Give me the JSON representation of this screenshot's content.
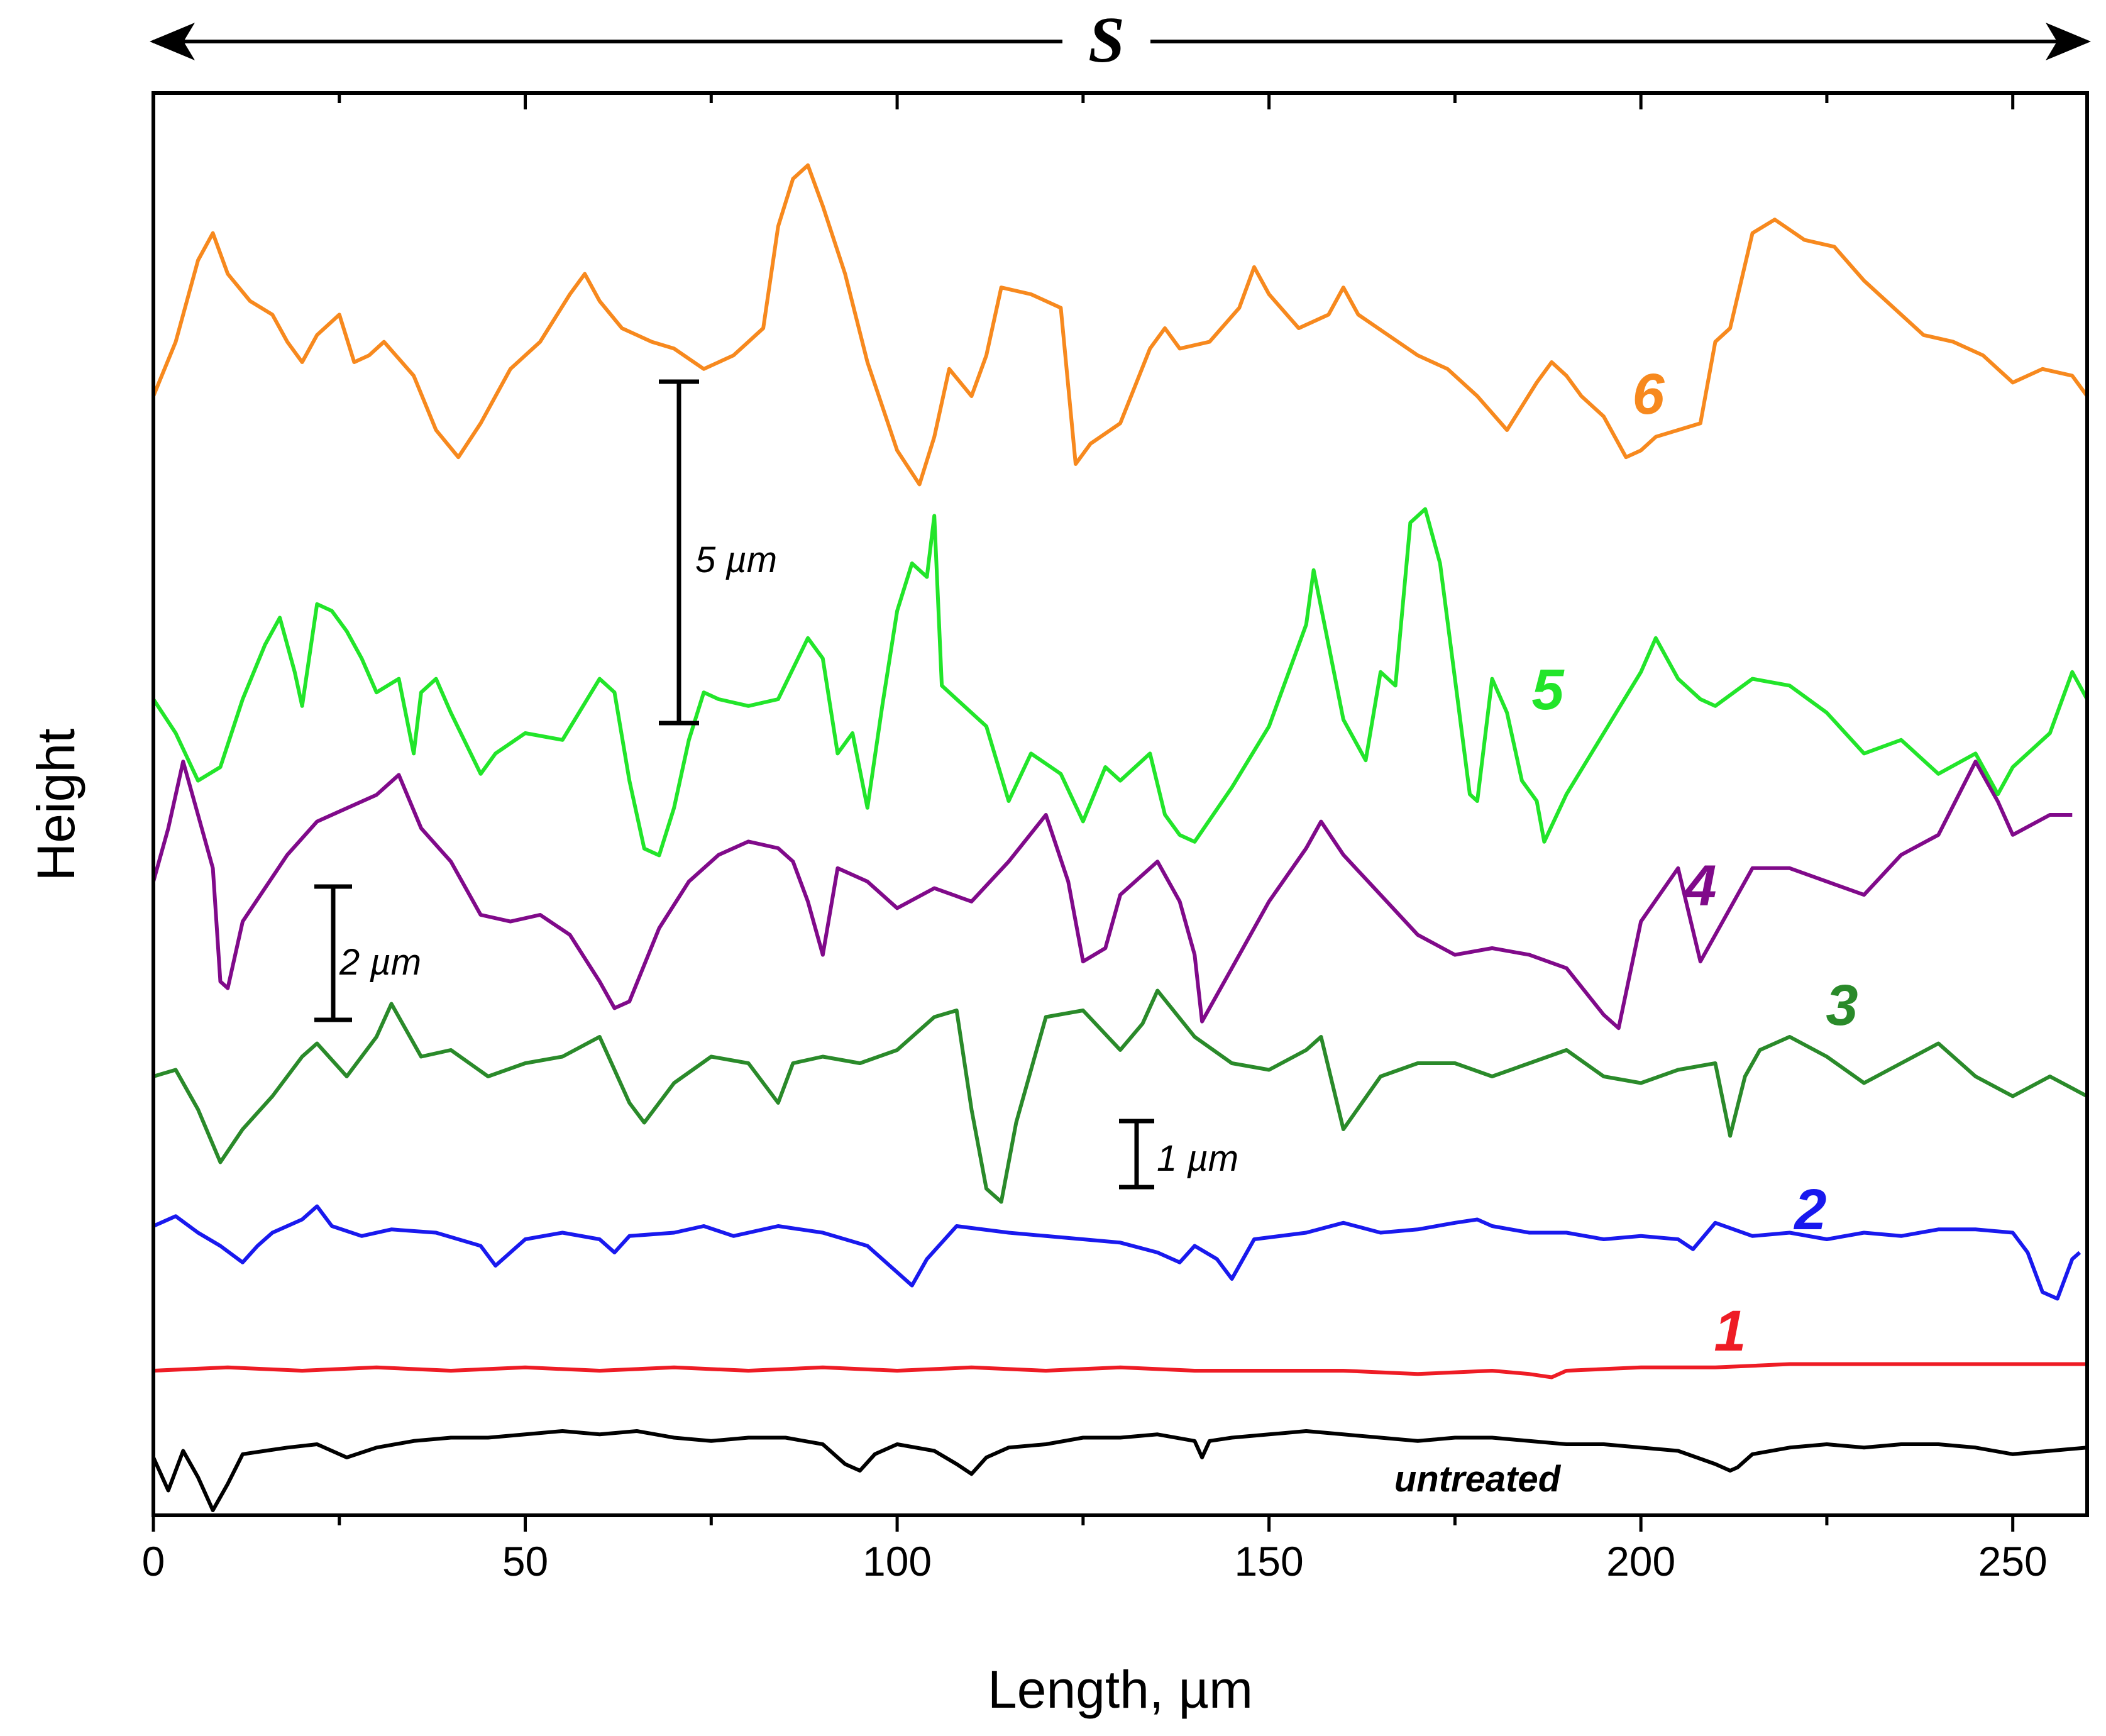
{
  "chart_data": {
    "type": "line",
    "title": "",
    "xlabel": "Length, µm",
    "ylabel": "Height",
    "xlim": [
      0,
      260
    ],
    "xticks": [
      0,
      50,
      100,
      150,
      200,
      250
    ],
    "xtick_labels": [
      "0",
      "50",
      "100",
      "150",
      "200",
      "250"
    ],
    "top_arrow_label": "S",
    "scale_bars": [
      {
        "label": "5 µm",
        "value_um": 5
      },
      {
        "label": "2 µm",
        "value_um": 2
      },
      {
        "label": "1 µm",
        "value_um": 1
      }
    ],
    "series": [
      {
        "name": "untreated",
        "label": "untreated",
        "color": "#000000",
        "x": [
          0,
          2,
          4,
          6,
          8,
          10,
          12,
          15,
          18,
          22,
          26,
          30,
          35,
          40,
          45,
          50,
          55,
          60,
          65,
          70,
          75,
          80,
          85,
          90,
          93,
          95,
          97,
          100,
          105,
          108,
          110,
          112,
          115,
          120,
          125,
          130,
          135,
          140,
          141,
          142,
          145,
          150,
          155,
          160,
          165,
          170,
          175,
          180,
          185,
          190,
          195,
          200,
          205,
          210,
          212,
          213,
          215,
          220,
          225,
          230,
          235,
          240,
          245,
          250,
          255,
          260
        ],
        "y": [
          0.0,
          -0.5,
          0.1,
          -0.3,
          -0.8,
          -0.4,
          0.05,
          0.1,
          0.15,
          0.2,
          0.0,
          0.15,
          0.25,
          0.3,
          0.3,
          0.35,
          0.4,
          0.35,
          0.4,
          0.3,
          0.25,
          0.3,
          0.3,
          0.2,
          -0.1,
          -0.2,
          0.05,
          0.2,
          0.1,
          -0.1,
          -0.25,
          0.0,
          0.15,
          0.2,
          0.3,
          0.3,
          0.35,
          0.25,
          0.0,
          0.25,
          0.3,
          0.35,
          0.4,
          0.35,
          0.3,
          0.25,
          0.3,
          0.3,
          0.25,
          0.2,
          0.2,
          0.15,
          0.1,
          -0.1,
          -0.2,
          -0.15,
          0.05,
          0.15,
          0.2,
          0.15,
          0.2,
          0.2,
          0.15,
          0.05,
          0.1,
          0.15
        ]
      },
      {
        "name": "1",
        "label": "1",
        "color": "#ee1c25",
        "x": [
          0,
          10,
          20,
          30,
          40,
          50,
          60,
          70,
          80,
          90,
          100,
          110,
          120,
          130,
          140,
          150,
          160,
          170,
          180,
          185,
          188,
          190,
          200,
          210,
          220,
          230,
          240,
          250,
          260
        ],
        "y": [
          0.0,
          0.05,
          0.0,
          0.05,
          0.0,
          0.05,
          0.0,
          0.05,
          0.0,
          0.05,
          0.0,
          0.05,
          0.0,
          0.05,
          0.0,
          0.0,
          0.0,
          -0.05,
          0.0,
          -0.05,
          -0.1,
          0.0,
          0.05,
          0.05,
          0.1,
          0.1,
          0.1,
          0.1,
          0.1
        ]
      },
      {
        "name": "2",
        "label": "2",
        "color": "#1919ee",
        "x": [
          0,
          3,
          6,
          9,
          12,
          14,
          16,
          20,
          22,
          24,
          28,
          32,
          38,
          44,
          46,
          50,
          55,
          60,
          62,
          64,
          70,
          74,
          78,
          84,
          90,
          96,
          100,
          102,
          104,
          108,
          115,
          120,
          125,
          130,
          135,
          138,
          140,
          143,
          145,
          148,
          155,
          160,
          165,
          170,
          175,
          178,
          180,
          185,
          190,
          195,
          200,
          205,
          207,
          210,
          215,
          220,
          225,
          230,
          235,
          240,
          245,
          250,
          252,
          254,
          256,
          258,
          259
        ],
        "y": [
          0.0,
          0.15,
          -0.1,
          -0.3,
          -0.55,
          -0.3,
          -0.1,
          0.1,
          0.3,
          0.0,
          -0.15,
          -0.05,
          -0.1,
          -0.3,
          -0.6,
          -0.2,
          -0.1,
          -0.2,
          -0.4,
          -0.15,
          -0.1,
          0.0,
          -0.15,
          0.0,
          -0.1,
          -0.3,
          -0.7,
          -0.9,
          -0.5,
          0.0,
          -0.1,
          -0.15,
          -0.2,
          -0.25,
          -0.4,
          -0.55,
          -0.3,
          -0.5,
          -0.8,
          -0.2,
          -0.1,
          0.05,
          -0.1,
          -0.05,
          0.05,
          0.1,
          0.0,
          -0.1,
          -0.1,
          -0.2,
          -0.15,
          -0.2,
          -0.35,
          0.05,
          -0.15,
          -0.1,
          -0.2,
          -0.1,
          -0.15,
          -0.05,
          -0.05,
          -0.1,
          -0.4,
          -1.0,
          -1.1,
          -0.5,
          -0.4
        ]
      },
      {
        "name": "3",
        "label": "3",
        "color": "#2a8a2a",
        "x": [
          0,
          3,
          6,
          9,
          12,
          16,
          20,
          22,
          26,
          30,
          32,
          36,
          40,
          45,
          50,
          55,
          60,
          64,
          66,
          70,
          75,
          80,
          84,
          86,
          90,
          95,
          100,
          105,
          108,
          110,
          112,
          114,
          116,
          120,
          125,
          130,
          133,
          135,
          140,
          145,
          150,
          155,
          157,
          160,
          165,
          170,
          175,
          180,
          185,
          190,
          195,
          200,
          205,
          210,
          212,
          214,
          216,
          220,
          225,
          230,
          235,
          240,
          245,
          250,
          255,
          260
        ],
        "y": [
          0.0,
          0.1,
          -0.5,
          -1.3,
          -0.8,
          -0.3,
          0.3,
          0.5,
          0.0,
          0.6,
          1.1,
          0.3,
          0.4,
          0.0,
          0.2,
          0.3,
          0.6,
          -0.4,
          -0.7,
          -0.1,
          0.3,
          0.2,
          -0.4,
          0.2,
          0.3,
          0.2,
          0.4,
          0.9,
          1.0,
          -0.5,
          -1.7,
          -1.9,
          -0.7,
          0.9,
          1.0,
          0.4,
          0.8,
          1.3,
          0.6,
          0.2,
          0.1,
          0.4,
          0.6,
          -0.8,
          0.0,
          0.2,
          0.2,
          0.0,
          0.2,
          0.4,
          0.0,
          -0.1,
          0.1,
          0.2,
          -0.9,
          0.0,
          0.4,
          0.6,
          0.3,
          -0.1,
          0.2,
          0.5,
          0.0,
          -0.3,
          0.0,
          -0.3
        ]
      },
      {
        "name": "4",
        "label": "4",
        "color": "#800a8a",
        "x": [
          0,
          2,
          4,
          6,
          8,
          9,
          10,
          12,
          15,
          18,
          22,
          26,
          30,
          33,
          36,
          40,
          44,
          48,
          52,
          56,
          60,
          62,
          64,
          68,
          72,
          76,
          80,
          84,
          86,
          88,
          90,
          92,
          96,
          100,
          105,
          110,
          115,
          120,
          123,
          125,
          128,
          130,
          135,
          138,
          140,
          141,
          145,
          150,
          155,
          157,
          160,
          165,
          170,
          175,
          180,
          185,
          190,
          195,
          197,
          200,
          205,
          208,
          210,
          215,
          220,
          225,
          230,
          235,
          240,
          245,
          248,
          250,
          255,
          258
        ],
        "y": [
          0.0,
          0.8,
          1.8,
          1.0,
          0.2,
          -1.5,
          -1.6,
          -0.6,
          -0.1,
          0.4,
          0.9,
          1.1,
          1.3,
          1.6,
          0.8,
          0.3,
          -0.5,
          -0.6,
          -0.5,
          -0.8,
          -1.5,
          -1.9,
          -1.8,
          -0.7,
          0.0,
          0.4,
          0.6,
          0.5,
          0.3,
          -0.3,
          -1.1,
          0.2,
          0.0,
          -0.4,
          -0.1,
          -0.3,
          0.3,
          1.0,
          0.0,
          -1.2,
          -1.0,
          -0.2,
          0.3,
          -0.3,
          -1.1,
          -2.1,
          -1.3,
          -0.3,
          0.5,
          0.9,
          0.4,
          -0.2,
          -0.8,
          -1.1,
          -1.0,
          -1.1,
          -1.3,
          -2.0,
          -2.2,
          -0.6,
          0.2,
          -1.2,
          -0.8,
          0.2,
          0.2,
          0.0,
          -0.2,
          0.4,
          0.7,
          1.8,
          1.2,
          0.7,
          1.0,
          1.0
        ]
      },
      {
        "name": "5",
        "label": "5",
        "color": "#22e52a",
        "x": [
          0,
          3,
          6,
          9,
          12,
          15,
          17,
          19,
          20,
          22,
          24,
          26,
          28,
          30,
          33,
          35,
          36,
          38,
          40,
          44,
          46,
          50,
          55,
          60,
          62,
          64,
          66,
          68,
          70,
          72,
          74,
          76,
          80,
          84,
          88,
          90,
          92,
          94,
          96,
          98,
          100,
          102,
          104,
          105,
          106,
          108,
          112,
          115,
          118,
          122,
          125,
          128,
          130,
          134,
          136,
          138,
          140,
          145,
          150,
          155,
          156,
          158,
          160,
          163,
          165,
          167,
          169,
          171,
          173,
          175,
          177,
          178,
          180,
          182,
          184,
          186,
          187,
          190,
          195,
          200,
          202,
          205,
          208,
          210,
          215,
          220,
          225,
          230,
          235,
          240,
          245,
          248,
          250,
          255,
          258,
          260
        ],
        "y": [
          0.0,
          -0.5,
          -1.2,
          -1.0,
          0.0,
          0.8,
          1.2,
          0.4,
          -0.1,
          1.4,
          1.3,
          1.0,
          0.6,
          0.1,
          0.3,
          -0.8,
          0.1,
          0.3,
          -0.2,
          -1.1,
          -0.8,
          -0.5,
          -0.6,
          0.3,
          0.1,
          -1.2,
          -2.2,
          -2.3,
          -1.6,
          -0.6,
          0.1,
          0.0,
          -0.1,
          0.0,
          0.9,
          0.6,
          -0.8,
          -0.5,
          -1.6,
          -0.1,
          1.3,
          2.0,
          1.8,
          2.7,
          0.2,
          0.0,
          -0.4,
          -1.5,
          -0.8,
          -1.1,
          -1.8,
          -1.0,
          -1.2,
          -0.8,
          -1.7,
          -2.0,
          -2.1,
          -1.3,
          -0.4,
          1.1,
          1.9,
          0.8,
          -0.3,
          -0.9,
          0.4,
          0.2,
          2.6,
          2.8,
          2.0,
          0.3,
          -1.4,
          -1.5,
          0.3,
          -0.2,
          -1.2,
          -1.5,
          -2.1,
          -1.4,
          -0.5,
          0.4,
          0.9,
          0.3,
          0.0,
          -0.1,
          0.3,
          0.2,
          -0.2,
          -0.8,
          -0.6,
          -1.1,
          -0.8,
          -1.4,
          -1.0,
          -0.5,
          0.4,
          0.0
        ]
      },
      {
        "name": "6",
        "label": "6",
        "color": "#f7891e",
        "x": [
          0,
          3,
          6,
          8,
          10,
          13,
          16,
          18,
          20,
          22,
          25,
          27,
          29,
          31,
          35,
          38,
          41,
          44,
          48,
          52,
          56,
          58,
          60,
          63,
          67,
          70,
          74,
          78,
          80,
          82,
          84,
          86,
          88,
          90,
          93,
          96,
          100,
          103,
          105,
          107,
          110,
          112,
          114,
          118,
          122,
          124,
          126,
          130,
          134,
          136,
          138,
          142,
          146,
          148,
          150,
          154,
          158,
          160,
          162,
          166,
          170,
          174,
          178,
          182,
          186,
          188,
          190,
          192,
          195,
          198,
          200,
          202,
          205,
          208,
          210,
          212,
          215,
          218,
          222,
          226,
          230,
          234,
          238,
          242,
          246,
          250,
          254,
          258,
          260
        ],
        "y": [
          0.0,
          0.8,
          2.0,
          2.4,
          1.8,
          1.4,
          1.2,
          0.8,
          0.5,
          0.9,
          1.2,
          0.5,
          0.6,
          0.8,
          0.3,
          -0.5,
          -0.9,
          -0.4,
          0.4,
          0.8,
          1.5,
          1.8,
          1.4,
          1.0,
          0.8,
          0.7,
          0.4,
          0.6,
          0.8,
          1.0,
          2.5,
          3.2,
          3.4,
          2.8,
          1.8,
          0.5,
          -0.8,
          -1.3,
          -0.6,
          0.4,
          0.0,
          0.6,
          1.6,
          1.5,
          1.3,
          -1.0,
          -0.7,
          -0.4,
          0.7,
          1.0,
          0.7,
          0.8,
          1.3,
          1.9,
          1.5,
          1.0,
          1.2,
          1.6,
          1.2,
          0.9,
          0.6,
          0.4,
          0.0,
          -0.5,
          0.2,
          0.5,
          0.3,
          0.0,
          -0.3,
          -0.9,
          -0.8,
          -0.6,
          -0.5,
          -0.4,
          0.8,
          1.0,
          2.4,
          2.6,
          2.3,
          2.2,
          1.7,
          1.3,
          0.9,
          0.8,
          0.6,
          0.2,
          0.4,
          0.3,
          0.0
        ]
      }
    ]
  }
}
